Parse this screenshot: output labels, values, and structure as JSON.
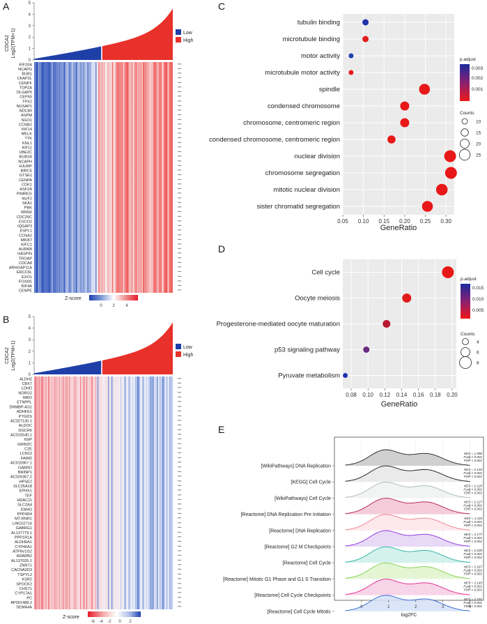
{
  "panels": {
    "A": {
      "letter": "A",
      "ylabel_line1": "CDCA2",
      "ylabel_line2": "Log2(TPM+1)",
      "yticks": [
        "0",
        "1",
        "2",
        "3",
        "4",
        "5"
      ],
      "legend": [
        {
          "label": "Low",
          "color": "#1f3fa8"
        },
        {
          "label": "High",
          "color": "#e8312a"
        }
      ],
      "genes": [
        "KIF20A",
        "NCAPG",
        "BUB1",
        "CKAP2L",
        "CENPF",
        "TOP2A",
        "DLGAP5",
        "CEP55",
        "TPX2",
        "NUSAP1",
        "NDC80",
        "ASPM",
        "SGO1",
        "CCNB2",
        "KIF14",
        "MELK",
        "TTK",
        "KNL1",
        "KIF11",
        "UBE2C",
        "BUB1B",
        "NCAPH",
        "HJURP",
        "BIRC5",
        "GTSE1",
        "CENPA",
        "CDK1",
        "ASF1B",
        "PIMREG",
        "NUF2",
        "SKA1",
        "PBK",
        "RRM2",
        "CDC25C",
        "ESCO2",
        "IQGAP3",
        "ESPL1",
        "CCNA2",
        "MKI67",
        "KIFC1",
        "AURKB",
        "HASPIN",
        "TROAP",
        "CDCA8",
        "ARHGAP11A",
        "ERCC6L",
        "EXO1",
        "FOXM1",
        "KIF4A",
        "CENPE"
      ],
      "zscore_label": "Z-score",
      "zscore_ticks": [
        "0",
        "2",
        "4"
      ]
    },
    "B": {
      "letter": "B",
      "ylabel_line1": "CDCA2",
      "ylabel_line2": "Log2(TPM+1)",
      "yticks": [
        "0",
        "1",
        "2",
        "3",
        "4",
        "5"
      ],
      "legend": [
        {
          "label": "Low",
          "color": "#1f3fa8"
        },
        {
          "label": "High",
          "color": "#e8312a"
        }
      ],
      "genes": [
        "ALDH2",
        "CBX7",
        "LDHD",
        "NDRG2",
        "MRO",
        "ETNPPL",
        "DNMBP-AS1",
        "ADHFE1",
        "PTGDS",
        "AC027130.1",
        "ALDOC",
        "DGCR6",
        "AC015540.1",
        "IGIP",
        "GRIN2C",
        "C2E",
        "LCN12",
        "FAIM2",
        "AC015967.1",
        "GABRD",
        "BRINP1",
        "AC026367.2",
        "HPSE2",
        "SLC25A18",
        "EPHX1",
        "TEF",
        "HDAC11",
        "SLC2A4",
        "ENHO",
        "PPP4R4",
        "MT-RNR1",
        "LINC02716",
        "GABRG1",
        "AL137779.1",
        "PPP1R1A",
        "ALDH6A1",
        "CYP46A1",
        "ATP6V1G2",
        "ADARB2",
        "AL137025.1",
        "ZNNT1",
        "CACNA2D3",
        "TSPYL2",
        "KSR2",
        "SPOCK2",
        "CHST1",
        "CYP17A1",
        "PC",
        "AP001488.2",
        "SEMA4A"
      ],
      "zscore_label": "Z-score",
      "zscore_ticks": [
        "-6",
        "-4",
        "-2",
        "0",
        "2"
      ]
    },
    "C": {
      "letter": "C",
      "xlabel": "GeneRatio",
      "legend_padj_title": "p.adjust",
      "legend_padj_ticks": [
        "0.003",
        "0.002",
        "0.001"
      ],
      "legend_counts_title": "Counts",
      "legend_counts": [
        10,
        15,
        20,
        25
      ],
      "xlim": [
        0.05,
        0.32
      ],
      "xticks": [
        0.05,
        0.1,
        0.15,
        0.2,
        0.25,
        0.3
      ],
      "terms": [
        "tubulin binding",
        "microtubule binding",
        "motor activity",
        "microtubule motor activity",
        "spindle",
        "condensed chromosome",
        "chromosome, centromeric region",
        "condensed chromosome, centromeric region",
        "nuclear division",
        "chromosome segregation",
        "mitotic nuclear division",
        "sister chromatid segregation"
      ],
      "gene_ratio": [
        0.105,
        0.105,
        0.07,
        0.07,
        0.248,
        0.2,
        0.2,
        0.168,
        0.31,
        0.312,
        0.29,
        0.255
      ],
      "color": [
        "#2233aa",
        "#e02020",
        "#1f3fb0",
        "#e81818",
        "#e81818",
        "#e81818",
        "#e81818",
        "#e81818",
        "#e81818",
        "#e81818",
        "#e81818",
        "#e81818"
      ],
      "counts": [
        12,
        12,
        8,
        8,
        25,
        20,
        20,
        17,
        28,
        28,
        27,
        25
      ]
    },
    "D": {
      "letter": "D",
      "xlabel": "GeneRatio",
      "legend_padj_title": "p.adjust",
      "legend_padj_ticks": [
        "0.015",
        "0.010",
        "0.005"
      ],
      "legend_counts_title": "Counts",
      "legend_counts": [
        4,
        6,
        8
      ],
      "xlim": [
        0.07,
        0.205
      ],
      "xticks": [
        0.08,
        0.1,
        0.12,
        0.14,
        0.16,
        0.18,
        0.2
      ],
      "terms": [
        "Cell cycle",
        "Oocyte meiosis",
        "Progesterone-mediated oocyte maturation",
        "p53 signaling pathway",
        "Pyruvate metabolism"
      ],
      "gene_ratio": [
        0.195,
        0.146,
        0.122,
        0.098,
        0.073
      ],
      "color": [
        "#e81818",
        "#e01c1c",
        "#b81830",
        "#6a2a80",
        "#2233b0"
      ],
      "counts": [
        8,
        6,
        5,
        4,
        3
      ]
    },
    "E": {
      "letter": "E",
      "xlabel": "log2FC",
      "xticks": [
        "0",
        "1",
        "2",
        "3",
        "4"
      ],
      "pathways": [
        {
          "name": "[WikiPathways] DNA Replication",
          "nes": "NES = 1.996",
          "padj": "P.adj < 0.001",
          "fdr": "FDR < 0.001",
          "color": "#222222",
          "fill": "#c8c8c8"
        },
        {
          "name": "[KEGG] Cell Cycle",
          "nes": "NES = 2.134",
          "padj": "P.adj < 0.001",
          "fdr": "FDR < 0.001",
          "color": "#111111",
          "fill": "#e6e6e6"
        },
        {
          "name": "[WikiPathways] Cell Cycle",
          "nes": "NES = 2.129",
          "padj": "P.adj < 0.001",
          "fdr": "FDR < 0.001",
          "color": "#a8b8b0",
          "fill": "#eef2f0"
        },
        {
          "name": "[Reactome] DNA Replication Pre Initiation",
          "nes": "NES = 2.127",
          "padj": "P.adj < 0.001",
          "fdr": "FDR < 0.001",
          "color": "#b0184a",
          "fill": "#f3c4d4"
        },
        {
          "name": "[Reactome] DNA Replication",
          "nes": "NES = 2.118",
          "padj": "P.adj < 0.001",
          "fdr": "FDR < 0.001",
          "color": "#f07a8a",
          "fill": "#fde4e8"
        },
        {
          "name": "[Reactome] G2 M Checkpoints",
          "nes": "NES = 2.177",
          "padj": "P.adj < 0.001",
          "fdr": "FDR < 0.001",
          "color": "#8a2be2",
          "fill": "#e4d2f6"
        },
        {
          "name": "[Reactome] Cell Cycle",
          "nes": "NES = 2.200",
          "padj": "P.adj < 0.001",
          "fdr": "FDR < 0.001",
          "color": "#20b0a0",
          "fill": "#cdeee9"
        },
        {
          "name": "[Reactome] Mitotic G1 Phase and G1 S Transition",
          "nes": "NES = 2.167",
          "padj": "P.adj < 0.001",
          "fdr": "FDR < 0.001",
          "color": "#7ad040",
          "fill": "#dff3cc"
        },
        {
          "name": "[Reactome] Cell Cycle Checkpoints",
          "nes": "NES = 2.145",
          "padj": "P.adj < 0.001",
          "fdr": "FDR < 0.001",
          "color": "#e0208a",
          "fill": "#f7cde4"
        },
        {
          "name": "[Reactome] Cell Cycle Mitotic",
          "nes": "NES = 2.192",
          "padj": "P.adj < 0.001",
          "fdr": "FDR < 0.001",
          "color": "#2a60d0",
          "fill": "#d3e0f6"
        }
      ]
    }
  },
  "chart_data": [
    {
      "type": "scatter",
      "title": "C",
      "xlabel": "GeneRatio",
      "terms": [
        "tubulin binding",
        "microtubule binding",
        "motor activity",
        "microtubule motor activity",
        "spindle",
        "condensed chromosome",
        "chromosome, centromeric region",
        "condensed chromosome, centromeric region",
        "nuclear division",
        "chromosome segregation",
        "mitotic nuclear division",
        "sister chromatid segregation"
      ],
      "x": [
        0.105,
        0.105,
        0.07,
        0.07,
        0.248,
        0.2,
        0.2,
        0.168,
        0.31,
        0.312,
        0.29,
        0.255
      ],
      "xlim": [
        0.05,
        0.32
      ]
    },
    {
      "type": "scatter",
      "title": "D",
      "xlabel": "GeneRatio",
      "terms": [
        "Cell cycle",
        "Oocyte meiosis",
        "Progesterone-mediated oocyte maturation",
        "p53 signaling pathway",
        "Pyruvate metabolism"
      ],
      "x": [
        0.195,
        0.146,
        0.122,
        0.098,
        0.073
      ],
      "xlim": [
        0.07,
        0.205
      ]
    },
    {
      "type": "heatmap",
      "title": "A",
      "ylabel": "CDCA2 Log2(TPM+1)",
      "ylim": [
        0,
        5
      ]
    },
    {
      "type": "heatmap",
      "title": "B",
      "ylabel": "CDCA2 Log2(TPM+1)",
      "ylim": [
        0,
        5
      ]
    },
    {
      "type": "area",
      "title": "E",
      "xlabel": "log2FC",
      "xlim": [
        -1,
        4.5
      ]
    }
  ]
}
